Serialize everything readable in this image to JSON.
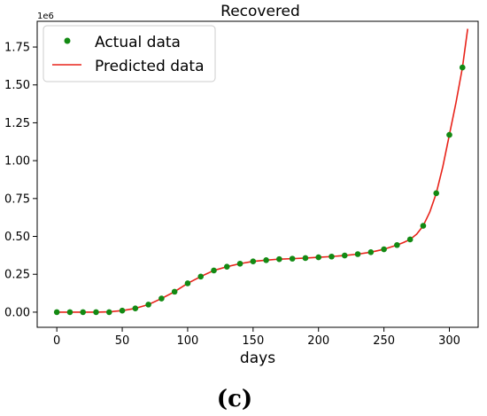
{
  "chart_data": {
    "type": "line",
    "title": "Recovered",
    "xlabel": "days",
    "ylabel": "",
    "y_offset_label": "1e6",
    "panel_label": "(c)",
    "xlim": [
      -15,
      322
    ],
    "ylim": [
      -0.1,
      1.92
    ],
    "x_ticks": [
      0,
      50,
      100,
      150,
      200,
      250,
      300
    ],
    "y_ticks": [
      0.0,
      0.25,
      0.5,
      0.75,
      1.0,
      1.25,
      1.5,
      1.75
    ],
    "y_tick_labels": [
      "0.00",
      "0.25",
      "0.50",
      "0.75",
      "1.00",
      "1.25",
      "1.50",
      "1.75"
    ],
    "legend_position": "top-left",
    "series": [
      {
        "name": "Actual data",
        "kind": "scatter",
        "color": "#138a13",
        "x": [
          0,
          10,
          20,
          30,
          40,
          50,
          60,
          70,
          80,
          90,
          100,
          110,
          120,
          130,
          140,
          150,
          160,
          170,
          180,
          190,
          200,
          210,
          220,
          230,
          240,
          250,
          260,
          270,
          280,
          290,
          300,
          310
        ],
        "y": [
          0.0,
          0.0,
          0.0,
          0.0,
          0.0,
          0.01,
          0.025,
          0.05,
          0.09,
          0.135,
          0.19,
          0.235,
          0.275,
          0.3,
          0.32,
          0.335,
          0.343,
          0.35,
          0.353,
          0.357,
          0.362,
          0.367,
          0.374,
          0.383,
          0.396,
          0.415,
          0.443,
          0.48,
          0.57,
          0.785,
          1.17,
          1.615
        ]
      },
      {
        "name": "Predicted data",
        "kind": "line",
        "color": "#e8231a",
        "x": [
          0,
          10,
          20,
          30,
          40,
          50,
          60,
          70,
          80,
          90,
          100,
          110,
          120,
          130,
          140,
          150,
          160,
          170,
          180,
          190,
          200,
          210,
          220,
          230,
          240,
          250,
          260,
          265,
          270,
          275,
          280,
          285,
          290,
          295,
          300,
          305,
          310,
          314
        ],
        "y": [
          0.0,
          0.0,
          0.0,
          0.0,
          0.002,
          0.01,
          0.025,
          0.05,
          0.09,
          0.135,
          0.19,
          0.235,
          0.275,
          0.3,
          0.32,
          0.335,
          0.343,
          0.35,
          0.353,
          0.357,
          0.362,
          0.367,
          0.374,
          0.383,
          0.396,
          0.415,
          0.443,
          0.46,
          0.48,
          0.515,
          0.57,
          0.66,
          0.785,
          0.96,
          1.17,
          1.38,
          1.615,
          1.87
        ]
      }
    ]
  }
}
